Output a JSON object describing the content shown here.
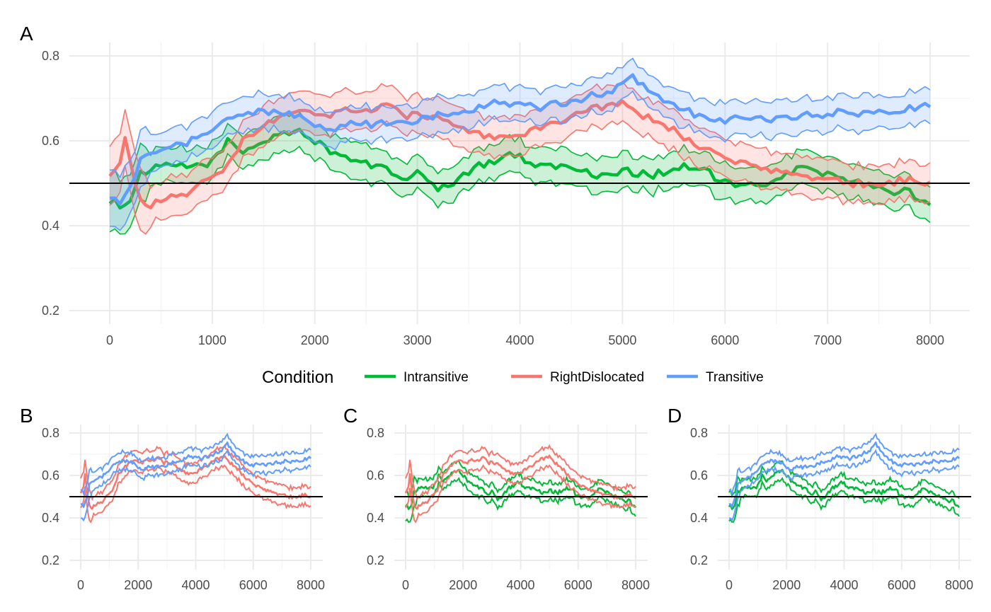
{
  "chart_data": {
    "type": "line",
    "x_range": [
      0,
      8000
    ],
    "x_step": 50,
    "x_ticks": [
      0,
      1000,
      2000,
      3000,
      4000,
      5000,
      6000,
      7000,
      8000
    ],
    "x_ticks_small": [
      0,
      2000,
      4000,
      6000,
      8000
    ],
    "y_ticks": [
      0.2,
      0.4,
      0.6,
      0.8
    ],
    "ylim": [
      0.2,
      0.8
    ],
    "reference_line": 0.5,
    "grid": true,
    "legend": {
      "title": "Condition",
      "position": "bottom",
      "entries": [
        "Intransitive",
        "RightDislocated",
        "Transitive"
      ]
    },
    "colors": {
      "Intransitive": "#00BA38",
      "RightDislocated": "#F8766D",
      "Transitive": "#619CFF"
    },
    "series_keypoints": [
      {
        "name": "Intransitive",
        "mean": [
          [
            0,
            0.46
          ],
          [
            100,
            0.45
          ],
          [
            200,
            0.46
          ],
          [
            300,
            0.52
          ],
          [
            500,
            0.54
          ],
          [
            800,
            0.54
          ],
          [
            1000,
            0.55
          ],
          [
            1150,
            0.6
          ],
          [
            1300,
            0.57
          ],
          [
            1500,
            0.6
          ],
          [
            1700,
            0.62
          ],
          [
            1900,
            0.62
          ],
          [
            2100,
            0.58
          ],
          [
            2300,
            0.56
          ],
          [
            2500,
            0.55
          ],
          [
            2700,
            0.53
          ],
          [
            2900,
            0.51
          ],
          [
            3000,
            0.53
          ],
          [
            3200,
            0.48
          ],
          [
            3400,
            0.51
          ],
          [
            3600,
            0.54
          ],
          [
            3900,
            0.57
          ],
          [
            4100,
            0.55
          ],
          [
            4300,
            0.54
          ],
          [
            4500,
            0.54
          ],
          [
            4700,
            0.52
          ],
          [
            4850,
            0.52
          ],
          [
            5000,
            0.53
          ],
          [
            5300,
            0.52
          ],
          [
            5600,
            0.54
          ],
          [
            5800,
            0.53
          ],
          [
            6000,
            0.5
          ],
          [
            6200,
            0.49
          ],
          [
            6400,
            0.5
          ],
          [
            6600,
            0.52
          ],
          [
            6800,
            0.54
          ],
          [
            7000,
            0.52
          ],
          [
            7200,
            0.51
          ],
          [
            7400,
            0.49
          ],
          [
            7600,
            0.48
          ],
          [
            7800,
            0.48
          ],
          [
            8000,
            0.45
          ]
        ],
        "halfwidth": 0.04
      },
      {
        "name": "RightDislocated",
        "mean": [
          [
            0,
            0.51
          ],
          [
            100,
            0.55
          ],
          [
            150,
            0.6
          ],
          [
            200,
            0.55
          ],
          [
            250,
            0.5
          ],
          [
            350,
            0.44
          ],
          [
            500,
            0.46
          ],
          [
            700,
            0.47
          ],
          [
            900,
            0.5
          ],
          [
            1100,
            0.52
          ],
          [
            1300,
            0.6
          ],
          [
            1500,
            0.64
          ],
          [
            1700,
            0.66
          ],
          [
            1900,
            0.67
          ],
          [
            2100,
            0.66
          ],
          [
            2300,
            0.67
          ],
          [
            2500,
            0.67
          ],
          [
            2700,
            0.68
          ],
          [
            2900,
            0.66
          ],
          [
            3100,
            0.66
          ],
          [
            3300,
            0.64
          ],
          [
            3500,
            0.62
          ],
          [
            3700,
            0.61
          ],
          [
            3900,
            0.61
          ],
          [
            4100,
            0.62
          ],
          [
            4300,
            0.64
          ],
          [
            4500,
            0.66
          ],
          [
            4700,
            0.68
          ],
          [
            4900,
            0.68
          ],
          [
            5000,
            0.69
          ],
          [
            5200,
            0.66
          ],
          [
            5400,
            0.64
          ],
          [
            5600,
            0.61
          ],
          [
            5800,
            0.58
          ],
          [
            6000,
            0.56
          ],
          [
            6200,
            0.55
          ],
          [
            6400,
            0.53
          ],
          [
            6600,
            0.52
          ],
          [
            6800,
            0.51
          ],
          [
            7000,
            0.51
          ],
          [
            7200,
            0.5
          ],
          [
            7400,
            0.5
          ],
          [
            7600,
            0.5
          ],
          [
            7800,
            0.51
          ],
          [
            8000,
            0.5
          ]
        ],
        "halfwidth": 0.045
      },
      {
        "name": "Transitive",
        "mean": [
          [
            0,
            0.47
          ],
          [
            100,
            0.45
          ],
          [
            200,
            0.5
          ],
          [
            300,
            0.55
          ],
          [
            500,
            0.58
          ],
          [
            700,
            0.59
          ],
          [
            900,
            0.61
          ],
          [
            1000,
            0.63
          ],
          [
            1200,
            0.65
          ],
          [
            1400,
            0.67
          ],
          [
            1600,
            0.67
          ],
          [
            1800,
            0.66
          ],
          [
            2000,
            0.64
          ],
          [
            2200,
            0.63
          ],
          [
            2400,
            0.64
          ],
          [
            2600,
            0.64
          ],
          [
            2800,
            0.64
          ],
          [
            3000,
            0.65
          ],
          [
            3200,
            0.66
          ],
          [
            3400,
            0.67
          ],
          [
            3600,
            0.68
          ],
          [
            3800,
            0.69
          ],
          [
            4000,
            0.69
          ],
          [
            4200,
            0.68
          ],
          [
            4400,
            0.69
          ],
          [
            4600,
            0.7
          ],
          [
            4800,
            0.71
          ],
          [
            5000,
            0.73
          ],
          [
            5100,
            0.75
          ],
          [
            5300,
            0.71
          ],
          [
            5500,
            0.69
          ],
          [
            5700,
            0.66
          ],
          [
            5900,
            0.65
          ],
          [
            6100,
            0.65
          ],
          [
            6300,
            0.65
          ],
          [
            6500,
            0.65
          ],
          [
            6700,
            0.66
          ],
          [
            6900,
            0.66
          ],
          [
            7100,
            0.67
          ],
          [
            7300,
            0.66
          ],
          [
            7500,
            0.67
          ],
          [
            7700,
            0.67
          ],
          [
            7900,
            0.68
          ],
          [
            8000,
            0.68
          ]
        ],
        "halfwidth": 0.04
      }
    ],
    "panels": [
      {
        "letter": "A",
        "series": [
          "Intransitive",
          "RightDislocated",
          "Transitive"
        ],
        "bands": "filled"
      },
      {
        "letter": "B",
        "series": [
          "RightDislocated",
          "Transitive"
        ],
        "bands": "outline"
      },
      {
        "letter": "C",
        "series": [
          "Intransitive",
          "RightDislocated"
        ],
        "bands": "outline"
      },
      {
        "letter": "D",
        "series": [
          "Intransitive",
          "Transitive"
        ],
        "bands": "outline"
      }
    ]
  }
}
